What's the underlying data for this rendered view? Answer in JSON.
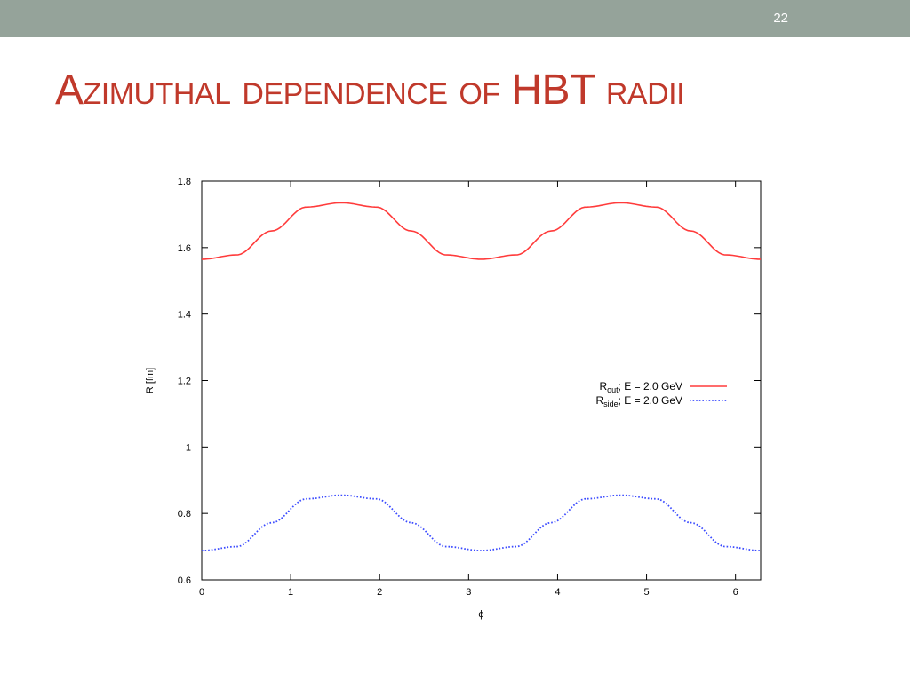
{
  "slide": {
    "number": "22",
    "title": "Azimuthal dependence of HBT radii"
  },
  "colors": {
    "top_bar": "#95a39a",
    "title": "#c0392b",
    "rout": "#ff3b3b",
    "rside": "#3b4bff"
  },
  "chart_data": {
    "type": "line",
    "xlabel": "ϕ",
    "ylabel": "R [fm]",
    "xlim": [
      0,
      6.283
    ],
    "ylim": [
      0.6,
      1.8
    ],
    "xticks": [
      0,
      1,
      2,
      3,
      4,
      5,
      6
    ],
    "yticks": [
      0.6,
      0.8,
      1,
      1.2,
      1.4,
      1.6,
      1.8
    ],
    "ytick_labels": [
      "0.6",
      "0.8",
      "1",
      "1.2",
      "1.4",
      "1.6",
      "1.8"
    ],
    "legend_position": "center-right",
    "grid": false,
    "x": [
      0,
      0.393,
      0.785,
      1.178,
      1.571,
      1.963,
      2.356,
      2.749,
      3.142,
      3.534,
      3.927,
      4.32,
      4.712,
      5.105,
      5.498,
      5.89,
      6.283
    ],
    "series": [
      {
        "name": "R_out; E = 2.0 GeV",
        "label_main": "R",
        "label_sub": "out",
        "label_rest": "; E = 2.0 GeV",
        "style": "solid",
        "values": [
          1.565,
          1.578,
          1.65,
          1.722,
          1.735,
          1.722,
          1.65,
          1.578,
          1.565,
          1.578,
          1.65,
          1.722,
          1.735,
          1.722,
          1.65,
          1.578,
          1.565
        ]
      },
      {
        "name": "R_side; E = 2.0 GeV",
        "label_main": "R",
        "label_sub": "side",
        "label_rest": "; E = 2.0 GeV",
        "style": "dotted",
        "values": [
          0.688,
          0.7,
          0.772,
          0.844,
          0.855,
          0.844,
          0.772,
          0.7,
          0.688,
          0.7,
          0.772,
          0.844,
          0.855,
          0.844,
          0.772,
          0.7,
          0.688
        ]
      }
    ]
  }
}
